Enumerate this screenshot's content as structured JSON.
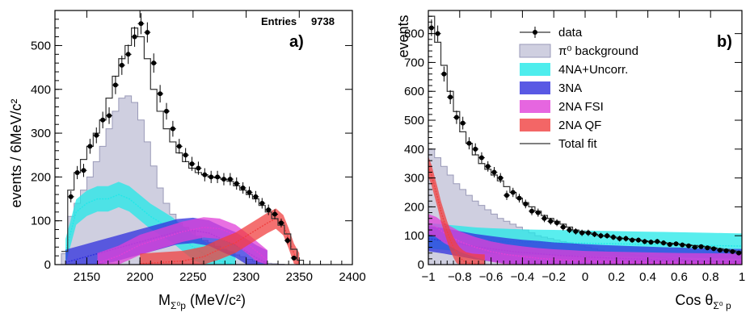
{
  "colors": {
    "pi0_fill": "#cfcfe0",
    "pi0_line": "#9a9ab8",
    "na4": "#22e8e8",
    "na3": "#3030dd",
    "fsi": "#e040d8",
    "qf": "#f04040",
    "total": "#333333",
    "data": "#000000"
  },
  "chart_data": [
    {
      "type": "histogram",
      "panel_label": "a)",
      "xlabel_main": "M",
      "xlabel_sub": "Σ⁰p",
      "xlabel_unit": " (MeV/c²)",
      "ylabel": "events / 6MeV/c²",
      "xlim": [
        2120,
        2400
      ],
      "ylim": [
        0,
        580
      ],
      "xticks": [
        2150,
        2200,
        2250,
        2300,
        2350,
        2400
      ],
      "yticks": [
        0,
        100,
        200,
        300,
        400,
        500
      ],
      "stats": {
        "label": "Entries",
        "value": "9738"
      },
      "bin_width": 6,
      "data": {
        "x": [
          2135,
          2141,
          2147,
          2153,
          2159,
          2165,
          2171,
          2177,
          2183,
          2189,
          2195,
          2201,
          2207,
          2213,
          2219,
          2225,
          2231,
          2237,
          2243,
          2249,
          2255,
          2261,
          2267,
          2273,
          2279,
          2285,
          2291,
          2297,
          2303,
          2309,
          2315,
          2321,
          2327,
          2333,
          2339,
          2345
        ],
        "y": [
          155,
          210,
          215,
          270,
          295,
          330,
          340,
          410,
          455,
          480,
          520,
          550,
          530,
          460,
          390,
          350,
          310,
          270,
          250,
          230,
          220,
          205,
          200,
          200,
          195,
          195,
          185,
          175,
          165,
          155,
          140,
          125,
          115,
          95,
          55,
          15
        ],
        "err": [
          13,
          15,
          15,
          17,
          18,
          19,
          19,
          21,
          22,
          22,
          23,
          24,
          23,
          22,
          20,
          19,
          18,
          17,
          16,
          16,
          15,
          15,
          14,
          14,
          14,
          14,
          14,
          13,
          13,
          13,
          12,
          12,
          11,
          10,
          8,
          4
        ]
      },
      "total_fit": {
        "x": [
          2126,
          2132,
          2138,
          2144,
          2150,
          2156,
          2162,
          2168,
          2174,
          2180,
          2186,
          2192,
          2198,
          2204,
          2210,
          2216,
          2222,
          2228,
          2234,
          2240,
          2246,
          2252,
          2258,
          2264,
          2270,
          2276,
          2282,
          2288,
          2294,
          2300,
          2306,
          2312,
          2318,
          2324,
          2330,
          2336,
          2342,
          2348,
          2354
        ],
        "y": [
          30,
          170,
          210,
          240,
          270,
          300,
          330,
          380,
          430,
          470,
          500,
          540,
          520,
          470,
          400,
          350,
          310,
          280,
          255,
          235,
          220,
          210,
          205,
          200,
          198,
          195,
          190,
          180,
          170,
          160,
          150,
          135,
          120,
          105,
          90,
          70,
          35,
          10,
          0
        ]
      },
      "pi0_background": {
        "x": [
          2126,
          2132,
          2138,
          2144,
          2150,
          2156,
          2162,
          2168,
          2174,
          2180,
          2186,
          2192,
          2198,
          2204,
          2210,
          2216,
          2222,
          2228,
          2234,
          2240,
          2246,
          2252,
          2258,
          2264,
          2270,
          2276,
          2282,
          2288,
          2294,
          2300,
          2306,
          2312,
          2318,
          2324,
          2330,
          2336,
          2342,
          2348,
          2354
        ],
        "y": [
          25,
          110,
          140,
          170,
          200,
          235,
          270,
          310,
          350,
          380,
          385,
          370,
          330,
          280,
          225,
          175,
          140,
          115,
          95,
          85,
          75,
          65,
          55,
          50,
          42,
          35,
          28,
          22,
          18,
          12,
          8,
          5,
          3,
          2,
          1,
          0,
          0,
          0,
          0
        ]
      },
      "na4_uncorr": {
        "x": [
          2130,
          2140,
          2150,
          2160,
          2170,
          2180,
          2190,
          2200,
          2210,
          2220,
          2230,
          2240,
          2250,
          2260,
          2270,
          2280,
          2290
        ],
        "y": [
          30,
          120,
          140,
          150,
          150,
          160,
          150,
          130,
          110,
          95,
          80,
          60,
          40,
          25,
          12,
          5,
          0
        ]
      },
      "na3": {
        "x": [
          2130,
          2145,
          2160,
          2175,
          2190,
          2205,
          2220,
          2235,
          2250,
          2265,
          2280,
          2290,
          2300,
          2310,
          2320
        ],
        "y": [
          5,
          15,
          25,
          35,
          45,
          55,
          65,
          75,
          78,
          72,
          55,
          45,
          30,
          15,
          3
        ]
      },
      "fsi_2na": {
        "x": [
          2160,
          2180,
          2200,
          2220,
          2240,
          2260,
          2275,
          2290,
          2300,
          2310,
          2320
        ],
        "y": [
          3,
          20,
          45,
          60,
          75,
          85,
          82,
          68,
          50,
          30,
          10
        ]
      },
      "qf_2na": {
        "x": [
          2200,
          2240,
          2260,
          2275,
          2290,
          2300,
          2310,
          2320,
          2328,
          2335,
          2340,
          2345,
          2350
        ],
        "y": [
          2,
          8,
          18,
          35,
          50,
          65,
          80,
          95,
          105,
          90,
          60,
          25,
          3
        ]
      }
    },
    {
      "type": "histogram",
      "panel_label": "b)",
      "xlabel_main": "Cos θ",
      "xlabel_sub": "Σ⁰ p",
      "xlabel_unit": "",
      "ylabel": "events",
      "xlim": [
        -1,
        1
      ],
      "ylim": [
        0,
        880
      ],
      "xticks": [
        -1,
        -0.8,
        -0.6,
        -0.4,
        -0.2,
        0,
        0.2,
        0.4,
        0.6,
        0.8,
        1
      ],
      "xticklabels": [
        "−1",
        "−0.8",
        "−0.6",
        "−0.4",
        "−0.2",
        "0",
        "0.2",
        "0.4",
        "0.6",
        "0.8",
        "1"
      ],
      "yticks": [
        0,
        100,
        200,
        300,
        400,
        500,
        600,
        700,
        800
      ],
      "bin_width": 0.04,
      "data": {
        "x": [
          -0.98,
          -0.94,
          -0.9,
          -0.86,
          -0.82,
          -0.78,
          -0.74,
          -0.7,
          -0.66,
          -0.62,
          -0.58,
          -0.54,
          -0.5,
          -0.46,
          -0.42,
          -0.38,
          -0.34,
          -0.3,
          -0.26,
          -0.22,
          -0.18,
          -0.14,
          -0.1,
          -0.06,
          -0.02,
          0.02,
          0.06,
          0.1,
          0.14,
          0.18,
          0.22,
          0.26,
          0.3,
          0.34,
          0.38,
          0.42,
          0.46,
          0.5,
          0.54,
          0.58,
          0.62,
          0.66,
          0.7,
          0.74,
          0.78,
          0.82,
          0.86,
          0.9,
          0.94,
          0.98
        ],
        "y": [
          820,
          800,
          660,
          580,
          510,
          490,
          420,
          400,
          370,
          340,
          320,
          300,
          240,
          250,
          230,
          210,
          185,
          180,
          160,
          150,
          145,
          130,
          120,
          115,
          110,
          110,
          105,
          100,
          100,
          95,
          90,
          90,
          85,
          85,
          80,
          78,
          80,
          75,
          70,
          72,
          68,
          65,
          60,
          62,
          58,
          55,
          50,
          48,
          45,
          40
        ],
        "err": [
          29,
          28,
          26,
          24,
          23,
          22,
          21,
          20,
          19,
          18,
          18,
          17,
          16,
          16,
          15,
          15,
          14,
          14,
          13,
          12,
          12,
          12,
          11,
          11,
          11,
          11,
          10,
          10,
          10,
          10,
          10,
          10,
          9,
          9,
          9,
          9,
          9,
          9,
          8,
          8,
          8,
          8,
          8,
          8,
          8,
          7,
          7,
          7,
          7,
          6
        ]
      },
      "total_fit": {
        "x": [
          -1.0,
          -0.96,
          -0.92,
          -0.88,
          -0.84,
          -0.8,
          -0.76,
          -0.72,
          -0.68,
          -0.64,
          -0.6,
          -0.56,
          -0.52,
          -0.48,
          -0.44,
          -0.4,
          -0.36,
          -0.32,
          -0.28,
          -0.24,
          -0.2,
          -0.16,
          -0.12,
          -0.08,
          -0.04,
          0.0,
          0.04,
          0.08,
          0.12,
          0.16,
          0.2,
          0.24,
          0.28,
          0.32,
          0.36,
          0.4,
          0.44,
          0.48,
          0.52,
          0.56,
          0.6,
          0.64,
          0.68,
          0.72,
          0.76,
          0.8,
          0.84,
          0.88,
          0.92,
          0.96
        ],
        "y": [
          860,
          770,
          690,
          600,
          530,
          460,
          420,
          380,
          350,
          330,
          310,
          290,
          270,
          250,
          230,
          215,
          200,
          185,
          170,
          160,
          150,
          140,
          130,
          120,
          115,
          110,
          105,
          100,
          98,
          95,
          92,
          90,
          88,
          85,
          82,
          80,
          78,
          76,
          74,
          72,
          70,
          68,
          66,
          64,
          62,
          58,
          55,
          52,
          48,
          45
        ]
      },
      "pi0_background": {
        "x": [
          -1.0,
          -0.96,
          -0.92,
          -0.88,
          -0.84,
          -0.8,
          -0.76,
          -0.72,
          -0.68,
          -0.64,
          -0.6,
          -0.56,
          -0.52,
          -0.48,
          -0.44,
          -0.4,
          -0.36,
          -0.32,
          -0.28,
          -0.24,
          -0.2,
          -0.16,
          -0.12,
          -0.08,
          -0.04,
          0.0,
          0.04,
          0.08,
          0.12,
          0.16,
          0.2,
          0.24,
          0.28,
          0.32,
          0.36,
          0.4,
          0.44,
          0.48,
          0.52,
          0.56,
          0.6,
          0.64,
          0.68,
          0.72,
          0.76,
          0.8,
          0.84,
          0.88,
          0.92,
          0.96
        ],
        "y": [
          400,
          370,
          340,
          310,
          280,
          260,
          240,
          220,
          205,
          190,
          175,
          160,
          150,
          140,
          130,
          120,
          110,
          100,
          95,
          90,
          85,
          80,
          75,
          70,
          65,
          60,
          55,
          50,
          45,
          42,
          40,
          38,
          35,
          32,
          30,
          28,
          26,
          24,
          22,
          20,
          18,
          16,
          15,
          14,
          13,
          12,
          11,
          10,
          9,
          8
        ]
      },
      "na4_uncorr": {
        "x": [
          -1.0,
          -0.9,
          -0.8,
          -0.7,
          -0.6,
          -0.5,
          -0.4,
          -0.3,
          -0.2,
          -0.1,
          0.0,
          0.1,
          0.2,
          0.3,
          0.4,
          0.5,
          0.6,
          0.7,
          0.8,
          0.9,
          1.0
        ],
        "y": [
          100,
          95,
          90,
          85,
          82,
          80,
          78,
          77,
          76,
          75,
          74,
          73,
          72,
          71,
          70,
          69,
          68,
          67,
          66,
          65,
          64
        ]
      },
      "na3": {
        "x": [
          -1.0,
          -0.9,
          -0.8,
          -0.7,
          -0.6,
          -0.5,
          -0.4,
          -0.3,
          -0.2,
          -0.1,
          0.0,
          0.1,
          0.2,
          0.3,
          0.4,
          0.5,
          0.6,
          0.7,
          0.8,
          0.9,
          1.0
        ],
        "y": [
          90,
          82,
          72,
          62,
          55,
          48,
          42,
          38,
          33,
          30,
          27,
          24,
          22,
          20,
          18,
          16,
          15,
          13,
          12,
          11,
          10
        ]
      },
      "fsi_2na": {
        "x": [
          -1.0,
          -0.95,
          -0.9,
          -0.85,
          -0.8,
          -0.7,
          -0.6,
          -0.5,
          -0.4,
          -0.3,
          -0.2,
          -0.1,
          0.0,
          0.2,
          0.4,
          0.6,
          0.8,
          1.0
        ],
        "y": [
          140,
          130,
          110,
          95,
          80,
          60,
          45,
          35,
          28,
          22,
          18,
          15,
          12,
          9,
          7,
          5,
          4,
          3
        ]
      },
      "qf_2na": {
        "x": [
          -1.0,
          -0.98,
          -0.96,
          -0.94,
          -0.92,
          -0.9,
          -0.88,
          -0.86,
          -0.84,
          -0.82,
          -0.8,
          -0.78,
          -0.76,
          -0.72,
          -0.68,
          -0.64
        ],
        "y": [
          340,
          310,
          270,
          230,
          185,
          150,
          115,
          85,
          60,
          40,
          25,
          15,
          8,
          3,
          1,
          0
        ]
      },
      "legend": [
        {
          "label": "data",
          "style": "marker"
        },
        {
          "label": "π⁰ background",
          "style": "fill-pi0"
        },
        {
          "label": "4NA+Uncorr.",
          "style": "band-na4"
        },
        {
          "label": "3NA",
          "style": "band-na3"
        },
        {
          "label": "2NA FSI",
          "style": "band-fsi"
        },
        {
          "label": "2NA QF",
          "style": "band-qf"
        },
        {
          "label": "Total fit",
          "style": "line-total"
        }
      ]
    }
  ]
}
